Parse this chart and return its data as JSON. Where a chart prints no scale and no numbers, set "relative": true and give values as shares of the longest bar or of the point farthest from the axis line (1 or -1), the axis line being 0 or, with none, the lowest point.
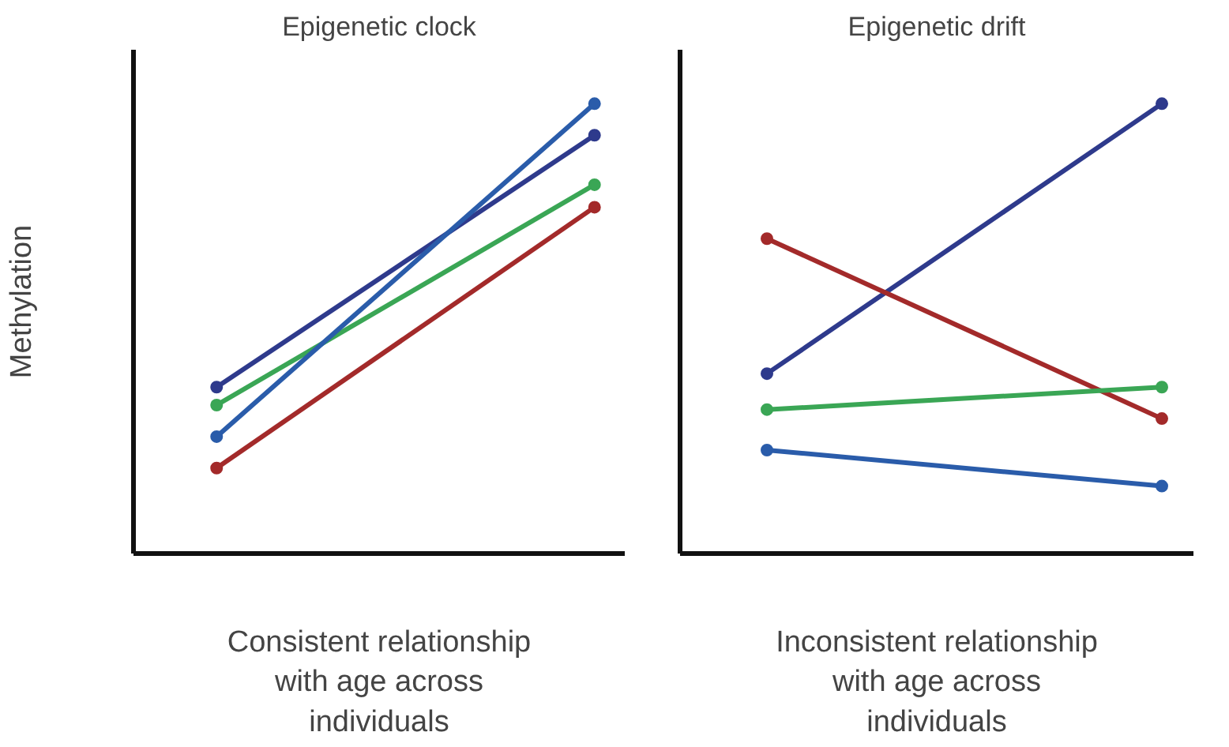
{
  "chart_data": [
    {
      "type": "line",
      "title": "Epigenetic clock",
      "xlabel": "Consistent relationship\nwith age across\nindividuals",
      "ylabel": "Methylation",
      "categories": [
        null,
        null
      ],
      "relative": true,
      "marker": "circle",
      "line_style": "solid",
      "grid": false,
      "series": [
        {
          "color": "#2e3a8c",
          "values": [
            0.37,
            0.93
          ]
        },
        {
          "color": "#3aa655",
          "values": [
            0.33,
            0.82
          ]
        },
        {
          "color": "#2a5caa",
          "values": [
            0.26,
            1.0
          ]
        },
        {
          "color": "#a32a2a",
          "values": [
            0.19,
            0.77
          ]
        }
      ]
    },
    {
      "type": "line",
      "title": "Epigenetic drift",
      "xlabel": "Inconsistent relationship\nwith age across\nindividuals",
      "categories": [
        null,
        null
      ],
      "relative": true,
      "marker": "circle",
      "line_style": "solid",
      "grid": false,
      "series": [
        {
          "color": "#2e3a8c",
          "values": [
            0.4,
            1.0
          ]
        },
        {
          "color": "#a32a2a",
          "values": [
            0.7,
            0.3
          ]
        },
        {
          "color": "#3aa655",
          "values": [
            0.32,
            0.37
          ]
        },
        {
          "color": "#2a5caa",
          "values": [
            0.23,
            0.15
          ]
        }
      ]
    }
  ]
}
